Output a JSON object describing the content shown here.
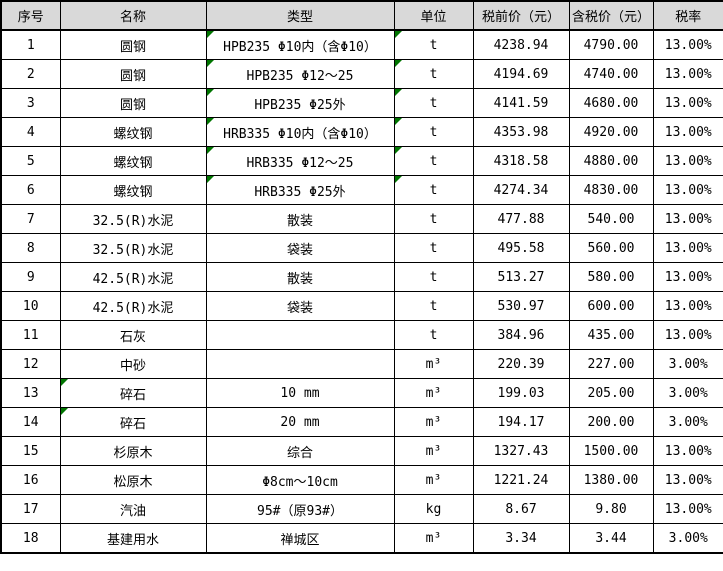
{
  "colors": {
    "header_bg": "#d9d9d9",
    "border": "#000000",
    "error_indicator_green": "#007500",
    "cell_bg": "#ffffff",
    "text": "#000000"
  },
  "table": {
    "columns": [
      {
        "key": "no",
        "label": "序号"
      },
      {
        "key": "name",
        "label": "名称"
      },
      {
        "key": "type",
        "label": "类型"
      },
      {
        "key": "unit",
        "label": "单位"
      },
      {
        "key": "pretax",
        "label": "税前价（元）"
      },
      {
        "key": "withtax",
        "label": "含税价（元）"
      },
      {
        "key": "rate",
        "label": "税率"
      }
    ],
    "rows": [
      {
        "no": "1",
        "name": "圆钢",
        "type": "HPB235 Φ10内（含Φ10）",
        "unit": "t",
        "pretax": "4238.94",
        "withtax": "4790.00",
        "rate": "13.00%",
        "flags": [
          "type",
          "unit"
        ]
      },
      {
        "no": "2",
        "name": "圆钢",
        "type": "HPB235 Φ12～25",
        "unit": "t",
        "pretax": "4194.69",
        "withtax": "4740.00",
        "rate": "13.00%",
        "flags": [
          "type",
          "unit"
        ]
      },
      {
        "no": "3",
        "name": "圆钢",
        "type": "HPB235 Φ25外",
        "unit": "t",
        "pretax": "4141.59",
        "withtax": "4680.00",
        "rate": "13.00%",
        "flags": [
          "type",
          "unit"
        ]
      },
      {
        "no": "4",
        "name": "螺纹钢",
        "type": "HRB335 Φ10内（含Φ10）",
        "unit": "t",
        "pretax": "4353.98",
        "withtax": "4920.00",
        "rate": "13.00%",
        "flags": [
          "type",
          "unit"
        ]
      },
      {
        "no": "5",
        "name": "螺纹钢",
        "type": "HRB335 Φ12～25",
        "unit": "t",
        "pretax": "4318.58",
        "withtax": "4880.00",
        "rate": "13.00%",
        "flags": [
          "type",
          "unit"
        ]
      },
      {
        "no": "6",
        "name": "螺纹钢",
        "type": "HRB335 Φ25外",
        "unit": "t",
        "pretax": "4274.34",
        "withtax": "4830.00",
        "rate": "13.00%",
        "flags": [
          "type",
          "unit"
        ]
      },
      {
        "no": "7",
        "name": "32.5(R)水泥",
        "type": "散装",
        "unit": "t",
        "pretax": "477.88",
        "withtax": "540.00",
        "rate": "13.00%",
        "flags": []
      },
      {
        "no": "8",
        "name": "32.5(R)水泥",
        "type": "袋装",
        "unit": "t",
        "pretax": "495.58",
        "withtax": "560.00",
        "rate": "13.00%",
        "flags": []
      },
      {
        "no": "9",
        "name": "42.5(R)水泥",
        "type": "散装",
        "unit": "t",
        "pretax": "513.27",
        "withtax": "580.00",
        "rate": "13.00%",
        "flags": []
      },
      {
        "no": "10",
        "name": "42.5(R)水泥",
        "type": "袋装",
        "unit": "t",
        "pretax": "530.97",
        "withtax": "600.00",
        "rate": "13.00%",
        "flags": []
      },
      {
        "no": "11",
        "name": "石灰",
        "type": "",
        "unit": "t",
        "pretax": "384.96",
        "withtax": "435.00",
        "rate": "13.00%",
        "flags": []
      },
      {
        "no": "12",
        "name": "中砂",
        "type": "",
        "unit": "m³",
        "pretax": "220.39",
        "withtax": "227.00",
        "rate": "3.00%",
        "flags": []
      },
      {
        "no": "13",
        "name": "碎石",
        "type": "10 mm",
        "unit": "m³",
        "pretax": "199.03",
        "withtax": "205.00",
        "rate": "3.00%",
        "flags": [
          "name"
        ]
      },
      {
        "no": "14",
        "name": "碎石",
        "type": "20 mm",
        "unit": "m³",
        "pretax": "194.17",
        "withtax": "200.00",
        "rate": "3.00%",
        "flags": [
          "name"
        ]
      },
      {
        "no": "15",
        "name": "杉原木",
        "type": "综合",
        "unit": "m³",
        "pretax": "1327.43",
        "withtax": "1500.00",
        "rate": "13.00%",
        "flags": []
      },
      {
        "no": "16",
        "name": "松原木",
        "type": "Φ8cm～10cm",
        "unit": "m³",
        "pretax": "1221.24",
        "withtax": "1380.00",
        "rate": "13.00%",
        "flags": []
      },
      {
        "no": "17",
        "name": "汽油",
        "type": "95#（原93#）",
        "unit": "kg",
        "pretax": "8.67",
        "withtax": "9.80",
        "rate": "13.00%",
        "flags": []
      },
      {
        "no": "18",
        "name": "基建用水",
        "type": "禅城区",
        "unit": "m³",
        "pretax": "3.34",
        "withtax": "3.44",
        "rate": "3.00%",
        "flags": []
      }
    ]
  }
}
